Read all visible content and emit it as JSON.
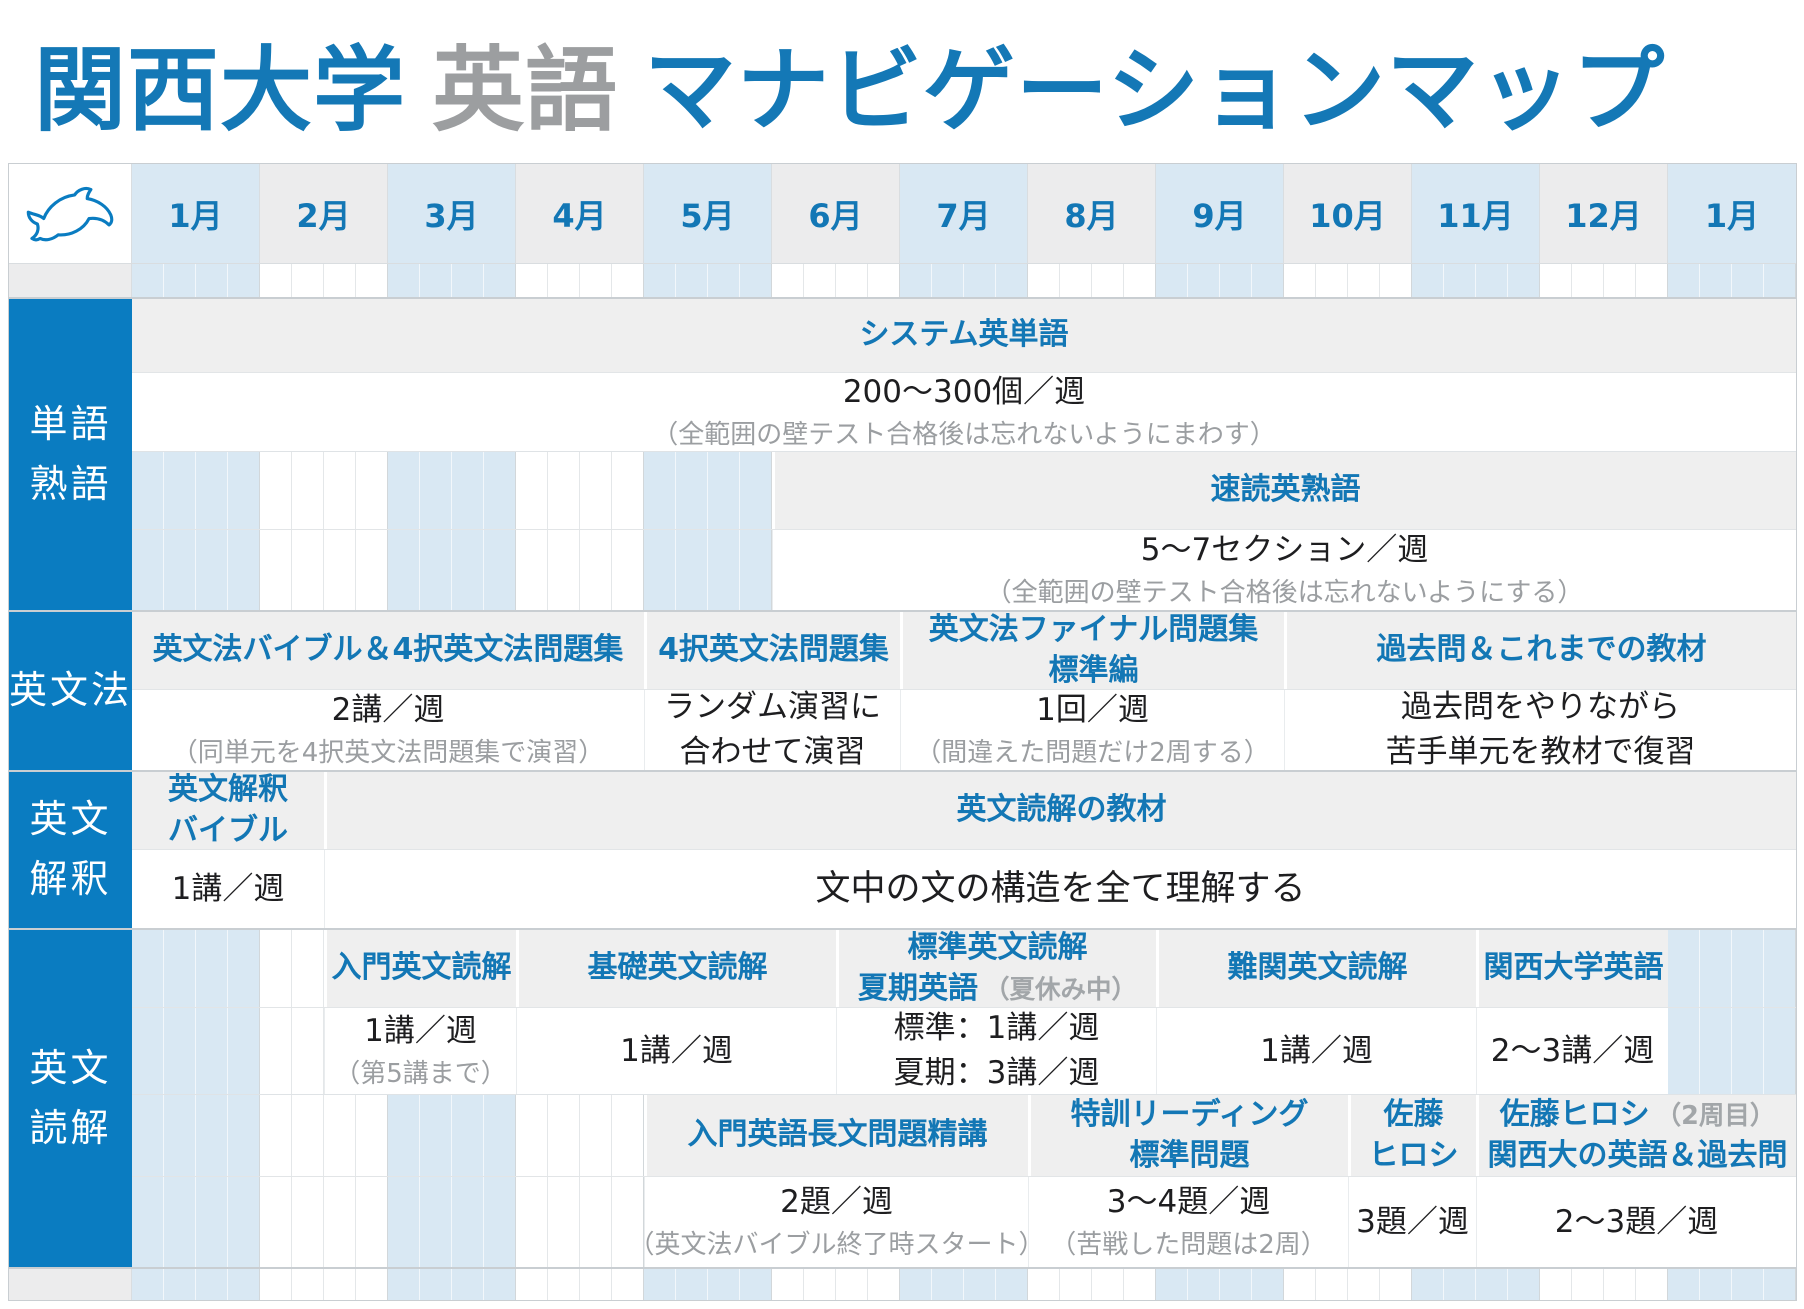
{
  "page_title": {
    "school": "関西大学",
    "subject": "英語",
    "suffix": "マナビゲーションマップ"
  },
  "colors": {
    "label_blue": "#0a7cc1",
    "text_blue": "#1377b5",
    "title_gray_text": "#9c9ea0",
    "bar_bg": "#efefef",
    "month_blue_bg": "#d9e8f3",
    "month_gray_bg": "#ececed",
    "note_gray": "#9b9ea1"
  },
  "timeline": {
    "months": [
      "1月",
      "2月",
      "3月",
      "4月",
      "5月",
      "6月",
      "7月",
      "8月",
      "9月",
      "10月",
      "11月",
      "12月",
      "1月"
    ],
    "weeks_per_month": 4
  },
  "sections": [
    {
      "label_lines": [
        "単語",
        "熟語"
      ],
      "bands": [
        {
          "title_h": 74,
          "content_h": 78,
          "cells": [
            {
              "start": 0,
              "span": 52,
              "title_lines": [
                [
                  {
                    "text": "システム英単語"
                  }
                ]
              ],
              "main_lines": [
                "200〜300個／週"
              ],
              "note": "（全範囲の壁テスト合格後は忘れないようにまわす）"
            }
          ]
        },
        {
          "title_h": 78,
          "content_h": 80,
          "cells": [
            {
              "start": 20,
              "span": 32,
              "title_lines": [
                [
                  {
                    "text": "速読英熟語"
                  }
                ]
              ],
              "main_lines": [
                "5〜7セクション／週"
              ],
              "note": "（全範囲の壁テスト合格後は忘れないようにする）"
            }
          ]
        }
      ]
    },
    {
      "label_lines": [
        "英文法"
      ],
      "bands": [
        {
          "title_h": 78,
          "content_h": 80,
          "cells": [
            {
              "start": 0,
              "span": 16,
              "title_lines": [
                [
                  {
                    "text": "英文法バイブル＆4択英文法問題集"
                  }
                ]
              ],
              "main_lines": [
                "2講／週"
              ],
              "note": "（同単元を4択英文法問題集で演習）"
            },
            {
              "start": 16,
              "span": 8,
              "title_lines": [
                [
                  {
                    "text": "4択英文法問題集"
                  }
                ]
              ],
              "main_lines": [
                "ランダム演習に",
                "合わせて演習"
              ]
            },
            {
              "start": 24,
              "span": 12,
              "title_lines": [
                [
                  {
                    "text": "英文法ファイナル問題集"
                  }
                ],
                [
                  {
                    "text": "標準編"
                  }
                ]
              ],
              "main_lines": [
                "1回／週"
              ],
              "note": "（間違えた問題だけ2周する）"
            },
            {
              "start": 36,
              "span": 16,
              "title_lines": [
                [
                  {
                    "text": "過去問＆これまでの教材"
                  }
                ]
              ],
              "main_lines": [
                "過去問をやりながら",
                "苦手単元を教材で復習"
              ]
            }
          ]
        }
      ]
    },
    {
      "label_lines": [
        "英文",
        "解釈"
      ],
      "bands": [
        {
          "title_h": 78,
          "content_h": 78,
          "cells": [
            {
              "start": 0,
              "span": 6,
              "title_lines": [
                [
                  {
                    "text": "英文解釈"
                  }
                ],
                [
                  {
                    "text": "バイブル"
                  }
                ]
              ],
              "main_lines": [
                "1講／週"
              ]
            },
            {
              "start": 6,
              "span": 46,
              "title_lines": [
                [
                  {
                    "text": "英文読解の教材"
                  }
                ]
              ],
              "main_lines": [
                "文中の文の構造を全て理解する"
              ],
              "big_main": true
            }
          ]
        }
      ]
    },
    {
      "label_lines": [
        "英文",
        "読解"
      ],
      "bands": [
        {
          "title_h": 78,
          "content_h": 86,
          "cells": [
            {
              "start": 6,
              "span": 6,
              "title_lines": [
                [
                  {
                    "text": "入門英文読解"
                  }
                ]
              ],
              "main_lines": [
                "1講／週"
              ],
              "note": "（第5講まで）"
            },
            {
              "start": 12,
              "span": 10,
              "title_lines": [
                [
                  {
                    "text": "基礎英文読解"
                  }
                ]
              ],
              "main_lines": [
                "1講／週"
              ]
            },
            {
              "start": 22,
              "span": 10,
              "title_lines": [
                [
                  {
                    "text": "標準英文読解"
                  }
                ],
                [
                  {
                    "text": "夏期英語"
                  },
                  {
                    "text": "（夏休み中）",
                    "muted": true
                  }
                ]
              ],
              "main_lines": [
                "標準：1講／週",
                "夏期：3講／週"
              ]
            },
            {
              "start": 32,
              "span": 10,
              "title_lines": [
                [
                  {
                    "text": "難関英文読解"
                  }
                ]
              ],
              "main_lines": [
                "1講／週"
              ]
            },
            {
              "start": 42,
              "span": 6,
              "title_lines": [
                [
                  {
                    "text": "関西大学英語"
                  }
                ]
              ],
              "main_lines": [
                "2〜3講／週"
              ]
            }
          ]
        },
        {
          "title_h": 82,
          "content_h": 90,
          "cells": [
            {
              "start": 16,
              "span": 12,
              "title_lines": [
                [
                  {
                    "text": "入門英語長文問題精講"
                  }
                ]
              ],
              "main_lines": [
                "2題／週"
              ],
              "note": "（英文法バイブル終了時スタート）"
            },
            {
              "start": 28,
              "span": 10,
              "title_lines": [
                [
                  {
                    "text": "特訓リーディング"
                  }
                ],
                [
                  {
                    "text": "標準問題"
                  }
                ]
              ],
              "main_lines": [
                "3〜4題／週"
              ],
              "note": "（苦戦した問題は2周）"
            },
            {
              "start": 38,
              "span": 4,
              "title_lines": [
                [
                  {
                    "text": "佐藤"
                  }
                ],
                [
                  {
                    "text": "ヒロシ"
                  }
                ]
              ],
              "main_lines": [
                "3題／週"
              ]
            },
            {
              "start": 42,
              "span": 10,
              "title_lines": [
                [
                  {
                    "text": "佐藤ヒロシ"
                  },
                  {
                    "text": "（2周目）",
                    "muted": true
                  }
                ],
                [
                  {
                    "text": "関西大の英語＆過去問"
                  }
                ]
              ],
              "main_lines": [
                "2〜3題／週"
              ]
            }
          ]
        }
      ]
    }
  ]
}
